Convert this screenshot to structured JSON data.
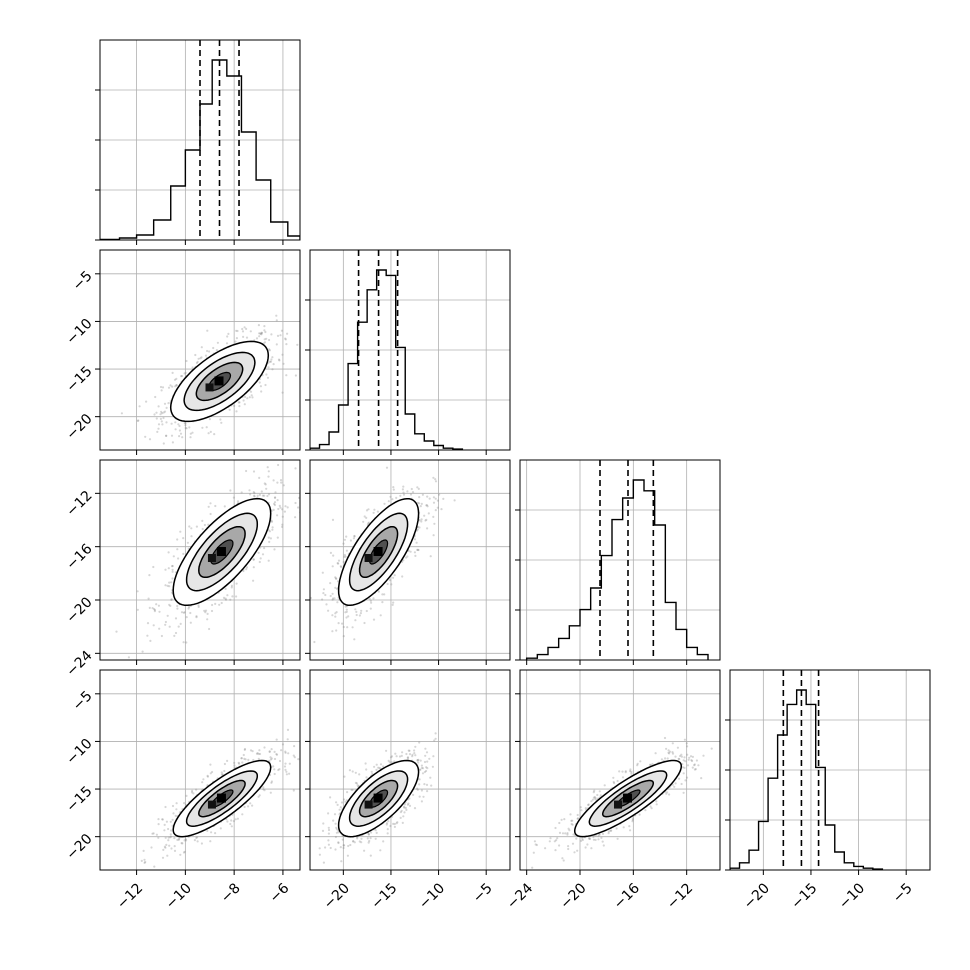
{
  "chart_data": {
    "type": "corner",
    "title": "",
    "parameters": [
      {
        "range": [
          -13.5,
          -5.3
        ],
        "ticks": [
          -12,
          -10,
          -8,
          -6
        ],
        "tick_labels": [
          "−12",
          "−10",
          "−8",
          "−6"
        ]
      },
      {
        "range": [
          -23.5,
          -2.5
        ],
        "ticks": [
          -20,
          -15,
          -10,
          -5
        ],
        "tick_labels": [
          "−20",
          "−15",
          "−10",
          "−5"
        ]
      },
      {
        "range": [
          -24.5,
          -9.5
        ],
        "ticks": [
          -24,
          -20,
          -16,
          -12
        ],
        "tick_labels": [
          "−24",
          "−20",
          "−16",
          "−12"
        ]
      },
      {
        "range": [
          -23.5,
          -2.5
        ],
        "ticks": [
          -20,
          -15,
          -10,
          -5
        ],
        "tick_labels": [
          "−20",
          "−15",
          "−10",
          "−5"
        ]
      }
    ],
    "histograms": [
      {
        "bins": [
          -13.5,
          -12.7,
          -12.0,
          -11.3,
          -10.6,
          -10.0,
          -9.4,
          -8.9,
          -8.3,
          -7.7,
          -7.1,
          -6.5,
          -5.8,
          -5.3
        ],
        "counts": [
          0.3,
          1.0,
          2.5,
          10.0,
          27.0,
          45.0,
          68.0,
          90.0,
          82.0,
          54.0,
          30.0,
          9.0,
          2.0
        ],
        "quantiles": [
          -9.4,
          -8.6,
          -7.8
        ]
      },
      {
        "bins": [
          -23.5,
          -22.5,
          -21.5,
          -20.5,
          -19.5,
          -18.5,
          -17.5,
          -16.5,
          -15.5,
          -14.5,
          -13.5,
          -12.5,
          -11.5,
          -10.5,
          -9.5,
          -8.5,
          -7.5
        ],
        "counts": [
          1,
          3,
          10,
          25,
          48,
          71,
          89,
          100,
          97,
          57,
          20,
          9,
          5,
          2.5,
          1,
          0.5
        ],
        "quantiles": [
          -18.4,
          -16.3,
          -14.3
        ]
      },
      {
        "bins": [
          -24.0,
          -23.2,
          -22.4,
          -21.6,
          -20.8,
          -20.0,
          -19.2,
          -18.4,
          -17.6,
          -16.8,
          -16.0,
          -15.2,
          -14.4,
          -13.6,
          -12.8,
          -12.0,
          -11.2,
          -10.4
        ],
        "counts": [
          1,
          3,
          7,
          12,
          19,
          28,
          40,
          58,
          78,
          90,
          100,
          94,
          75,
          32,
          17,
          7,
          3
        ],
        "quantiles": [
          -18.5,
          -16.4,
          -14.5
        ]
      },
      {
        "bins": [
          -23.5,
          -22.5,
          -21.5,
          -20.5,
          -19.5,
          -18.5,
          -17.5,
          -16.5,
          -15.5,
          -14.5,
          -13.5,
          -12.5,
          -11.5,
          -10.5,
          -9.5,
          -8.5,
          -7.5
        ],
        "counts": [
          1,
          4,
          11,
          27,
          51,
          75,
          92,
          100,
          92,
          57,
          25,
          10,
          4,
          2,
          1,
          0.5
        ],
        "quantiles": [
          -17.9,
          -16.0,
          -14.2
        ]
      }
    ],
    "pairs": [
      {
        "x": 0,
        "y": 1,
        "mean": [
          -8.6,
          -16.3
        ],
        "std": [
          1.0,
          2.1
        ],
        "rho": 0.65
      },
      {
        "x": 0,
        "y": 2,
        "mean": [
          -8.5,
          -16.4
        ],
        "std": [
          1.0,
          2.0
        ],
        "rho": 0.72
      },
      {
        "x": 1,
        "y": 2,
        "mean": [
          -16.3,
          -16.4
        ],
        "std": [
          2.1,
          2.0
        ],
        "rho": 0.72
      },
      {
        "x": 0,
        "y": 3,
        "mean": [
          -8.5,
          -16.0
        ],
        "std": [
          1.0,
          2.0
        ],
        "rho": 0.82
      },
      {
        "x": 1,
        "y": 3,
        "mean": [
          -16.3,
          -16.0
        ],
        "std": [
          2.1,
          2.0
        ],
        "rho": 0.7
      },
      {
        "x": 2,
        "y": 3,
        "mean": [
          -16.4,
          -16.0
        ],
        "std": [
          2.0,
          2.0
        ],
        "rho": 0.85
      }
    ],
    "grid": true,
    "colors": {
      "line": "#000000",
      "grid": "#b0b0b0",
      "scatter": "#8a8a8a",
      "fill": "#ffffff"
    }
  }
}
